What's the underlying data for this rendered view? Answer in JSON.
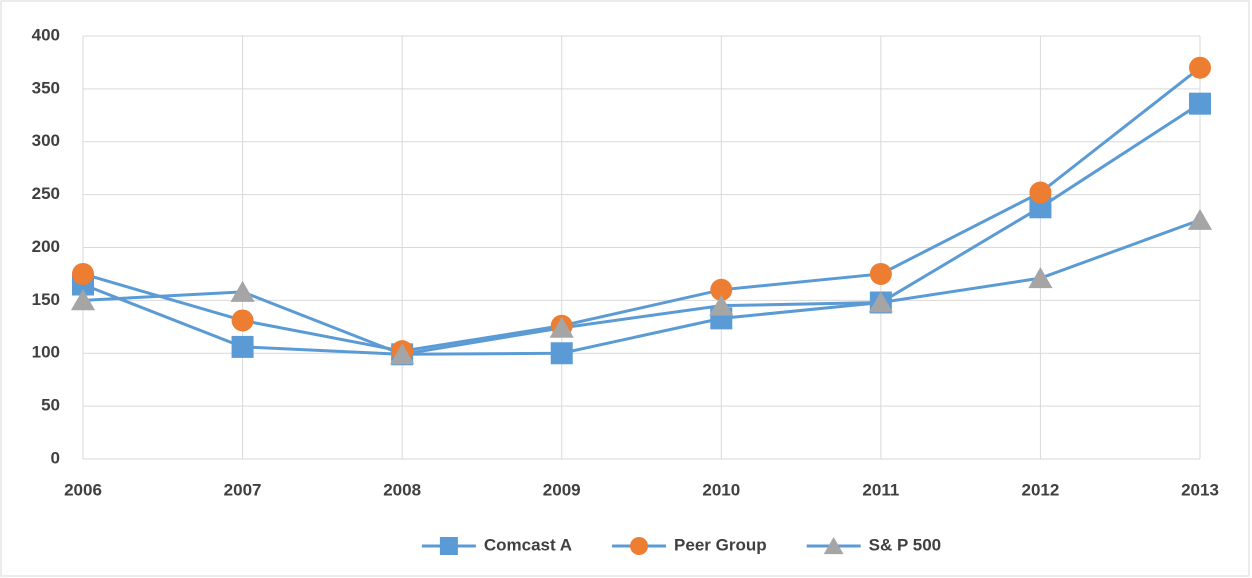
{
  "chart_data": {
    "type": "line",
    "categories": [
      "2006",
      "2007",
      "2008",
      "2009",
      "2010",
      "2011",
      "2012",
      "2013"
    ],
    "series": [
      {
        "name": "Comcast A",
        "color": "#5b9bd5",
        "marker": "square",
        "marker_color": "#5b9bd5",
        "values": [
          165,
          106,
          99,
          100,
          133,
          148,
          238,
          336
        ]
      },
      {
        "name": "Peer Group",
        "color": "#5b9bd5",
        "marker": "circle",
        "marker_color": "#ed7d31",
        "values": [
          175,
          131,
          102,
          126,
          160,
          175,
          252,
          370
        ]
      },
      {
        "name": "S& P 500",
        "color": "#5b9bd5",
        "marker": "triangle",
        "marker_color": "#a5a5a5",
        "values": [
          150,
          158,
          99,
          124,
          145,
          148,
          171,
          226
        ]
      }
    ],
    "ylim": [
      0,
      400
    ],
    "yticks": [
      0,
      50,
      100,
      150,
      200,
      250,
      300,
      350,
      400
    ],
    "grid": true,
    "legend": "bottom"
  }
}
